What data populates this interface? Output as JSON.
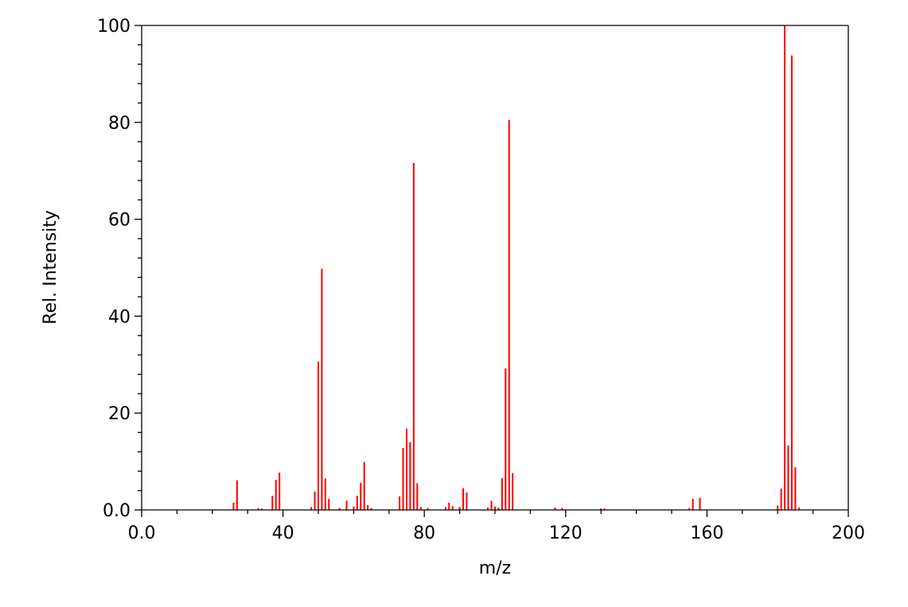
{
  "chart_data": {
    "type": "bar",
    "xlabel": "m/z",
    "ylabel": "Rel. Intensity",
    "xlim": [
      0,
      200
    ],
    "ylim": [
      0,
      100
    ],
    "xticks": [
      0,
      40,
      80,
      120,
      160,
      200
    ],
    "xtick_labels": [
      "0.0",
      "40",
      "80",
      "120",
      "160",
      "200"
    ],
    "yticks": [
      0,
      20,
      40,
      60,
      80,
      100
    ],
    "ytick_labels": [
      "0.0",
      "20",
      "40",
      "60",
      "80",
      "100"
    ],
    "grid": false,
    "bar_color": "#ff0000",
    "series": [
      {
        "x": [
          26,
          27,
          33,
          34,
          37,
          38,
          39,
          48,
          49,
          50,
          51,
          52,
          53,
          56,
          58,
          60,
          61,
          62,
          63,
          64,
          65,
          73,
          74,
          75,
          76,
          77,
          78,
          79,
          81,
          86,
          87,
          88,
          90,
          91,
          92,
          98,
          99,
          100,
          101,
          102,
          103,
          104,
          105,
          117,
          119,
          130,
          131,
          155,
          156,
          158,
          180,
          181,
          182,
          183,
          184,
          185,
          186
        ],
        "y": [
          1.5,
          6.1,
          0.4,
          0.3,
          2.9,
          6.2,
          7.7,
          0.6,
          3.8,
          30.6,
          49.8,
          6.5,
          2.3,
          0.4,
          1.9,
          0.7,
          2.9,
          5.6,
          9.9,
          1.0,
          0.4,
          2.8,
          12.8,
          16.8,
          14.0,
          71.6,
          5.5,
          0.6,
          0.4,
          0.6,
          1.5,
          0.8,
          0.6,
          4.5,
          3.6,
          0.5,
          1.9,
          0.7,
          0.5,
          6.6,
          29.2,
          80.5,
          7.6,
          0.5,
          0.4,
          0.3,
          0.3,
          0.4,
          2.3,
          2.5,
          0.9,
          4.4,
          100,
          13.3,
          93.8,
          8.8,
          0.5
        ]
      }
    ]
  }
}
